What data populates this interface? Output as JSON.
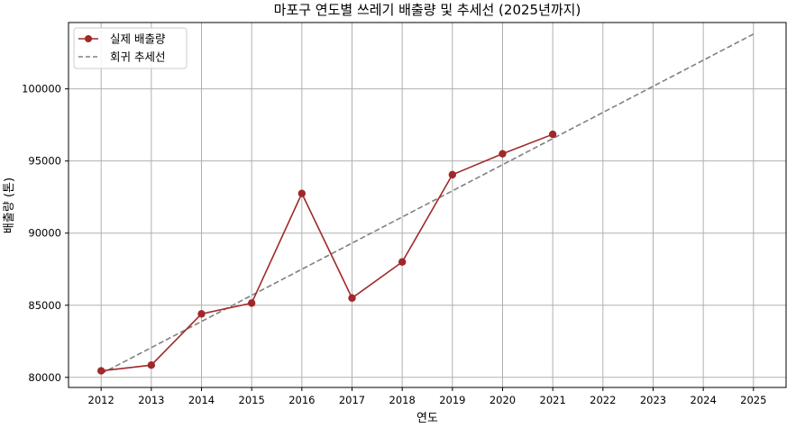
{
  "chart_data": {
    "type": "line",
    "title": "마포구 연도별 쓰레기 배출량 및 추세선 (2025년까지)",
    "xlabel": "연도",
    "ylabel": "배출량 (톤)",
    "x_ticks": [
      "2012",
      "2013",
      "2014",
      "2015",
      "2016",
      "2017",
      "2018",
      "2019",
      "2020",
      "2021",
      "2022",
      "2023",
      "2024",
      "2025"
    ],
    "y_ticks": [
      "80000",
      "85000",
      "90000",
      "95000",
      "100000"
    ],
    "xlim": [
      2011.35,
      2025.65
    ],
    "ylim": [
      79300,
      104600
    ],
    "grid": true,
    "legend_position": "top-left",
    "series": [
      {
        "name": "실제 배출량",
        "style": "solid-marker",
        "color": "#a0282a",
        "x": [
          2012,
          2013,
          2014,
          2015,
          2016,
          2017,
          2018,
          2019,
          2020,
          2021
        ],
        "y": [
          80450,
          80850,
          84400,
          85150,
          92750,
          85500,
          88000,
          94050,
          95500,
          96850
        ]
      },
      {
        "name": "회귀 추세선",
        "style": "dashed",
        "color": "#808080",
        "x": [
          2012,
          2025
        ],
        "y": [
          80250,
          103800
        ]
      }
    ]
  }
}
